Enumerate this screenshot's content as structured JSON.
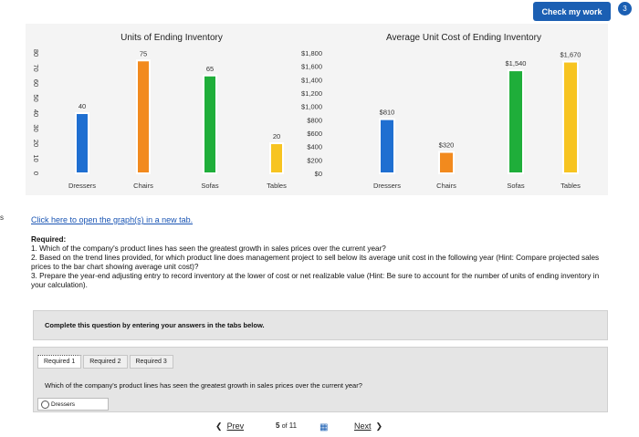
{
  "header": {
    "check_button": "Check my work",
    "check_badge": "3",
    "side_mark": "s"
  },
  "chart_data": [
    {
      "type": "bar",
      "title": "Units of Ending Inventory",
      "categories": [
        "Dressers",
        "Chairs",
        "Sofas",
        "Tables"
      ],
      "values": [
        40,
        75,
        65,
        20
      ],
      "value_labels": [
        "40",
        "75",
        "65",
        "20"
      ],
      "colors": [
        "#1f6fd1",
        "#f28a1e",
        "#1fae3a",
        "#f7c421"
      ],
      "ylim": [
        0,
        80
      ],
      "yticks": [
        "0",
        "10",
        "20",
        "30",
        "40",
        "50",
        "60",
        "70",
        "80"
      ],
      "grid": false
    },
    {
      "type": "bar",
      "title": "Average Unit Cost of Ending Inventory",
      "categories": [
        "Dressers",
        "Chairs",
        "Sofas",
        "Tables"
      ],
      "values": [
        810,
        320,
        1540,
        1670
      ],
      "value_labels": [
        "$810",
        "$320",
        "$1,540",
        "$1,670"
      ],
      "colors": [
        "#1f6fd1",
        "#f28a1e",
        "#1fae3a",
        "#f7c421"
      ],
      "ylim": [
        0,
        1800
      ],
      "yticks": [
        "$0",
        "$200",
        "$400",
        "$600",
        "$800",
        "$1,000",
        "$1,200",
        "$1,400",
        "$1,600",
        "$1,800"
      ],
      "grid": false
    }
  ],
  "content": {
    "link": "Click here to open the graph(s) in a new tab.",
    "required_heading": "Required:",
    "q1": "1. Which of the company's product lines has seen the greatest growth in sales prices over the current year?",
    "q2": "2. Based on the trend lines provided, for which product line does management project to sell below its average unit cost in the following year (Hint: Compare projected sales prices to the bar chart showing average unit cost)?",
    "q3": "3. Prepare the year-end adjusting entry to record inventory at the lower of cost or net realizable value (Hint: Be sure to account for the number of units of ending inventory in your calculation).",
    "instruction": "Complete this question by entering your answers in the tabs below."
  },
  "tabs": [
    "Required 1",
    "Required 2",
    "Required 3"
  ],
  "question": {
    "text": "Which of the company's product lines has seen the greatest growth in sales prices over the current year?",
    "answer": "Dressers"
  },
  "pager": {
    "prev": "Prev",
    "current": "5",
    "of": "of",
    "total": "11",
    "next": "Next"
  }
}
